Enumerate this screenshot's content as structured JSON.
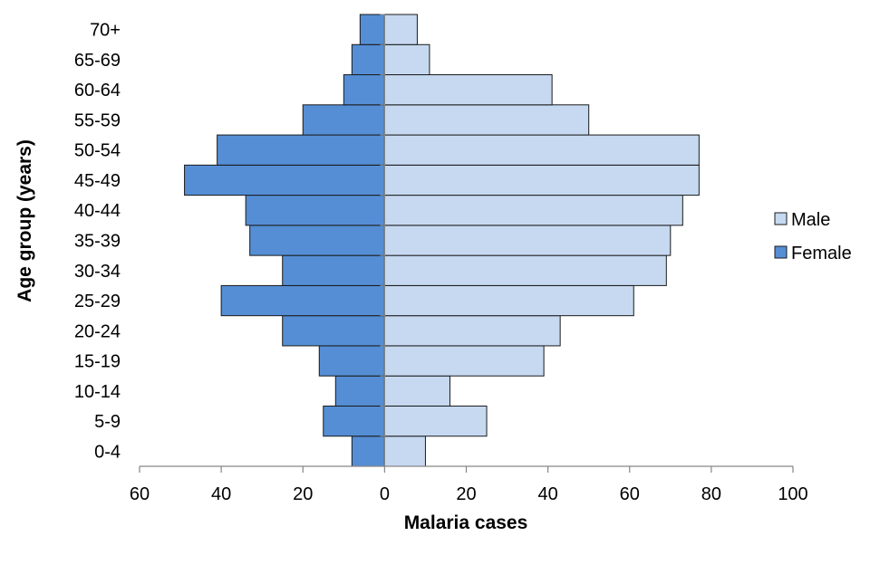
{
  "chart_data": {
    "type": "bar",
    "orientation": "horizontal",
    "variant": "population-pyramid",
    "xlabel": "Malaria cases",
    "ylabel": "Age group (years)",
    "xlim": [
      -60,
      100
    ],
    "xticks": [
      {
        "value": -60,
        "label": "60"
      },
      {
        "value": -40,
        "label": "40"
      },
      {
        "value": -20,
        "label": "20"
      },
      {
        "value": 0,
        "label": "0"
      },
      {
        "value": 20,
        "label": "20"
      },
      {
        "value": 40,
        "label": "40"
      },
      {
        "value": 60,
        "label": "60"
      },
      {
        "value": 80,
        "label": "80"
      },
      {
        "value": 100,
        "label": "100"
      }
    ],
    "categories": [
      "0-4",
      "5-9",
      "10-14",
      "15-19",
      "20-24",
      "25-29",
      "30-34",
      "35-39",
      "40-44",
      "45-49",
      "50-54",
      "55-59",
      "60-64",
      "65-69",
      "70+"
    ],
    "series": [
      {
        "name": "Male",
        "color": "#c6d9f1",
        "direction": "right",
        "values": [
          10,
          25,
          16,
          39,
          43,
          61,
          69,
          70,
          73,
          77,
          77,
          50,
          41,
          11,
          8
        ]
      },
      {
        "name": "Female",
        "color": "#558ed5",
        "direction": "left",
        "values": [
          8,
          15,
          12,
          16,
          25,
          40,
          25,
          33,
          34,
          49,
          41,
          20,
          10,
          8,
          6
        ]
      }
    ],
    "legend": {
      "position": "right",
      "entries": [
        "Male",
        "Female"
      ]
    },
    "grid": false
  }
}
